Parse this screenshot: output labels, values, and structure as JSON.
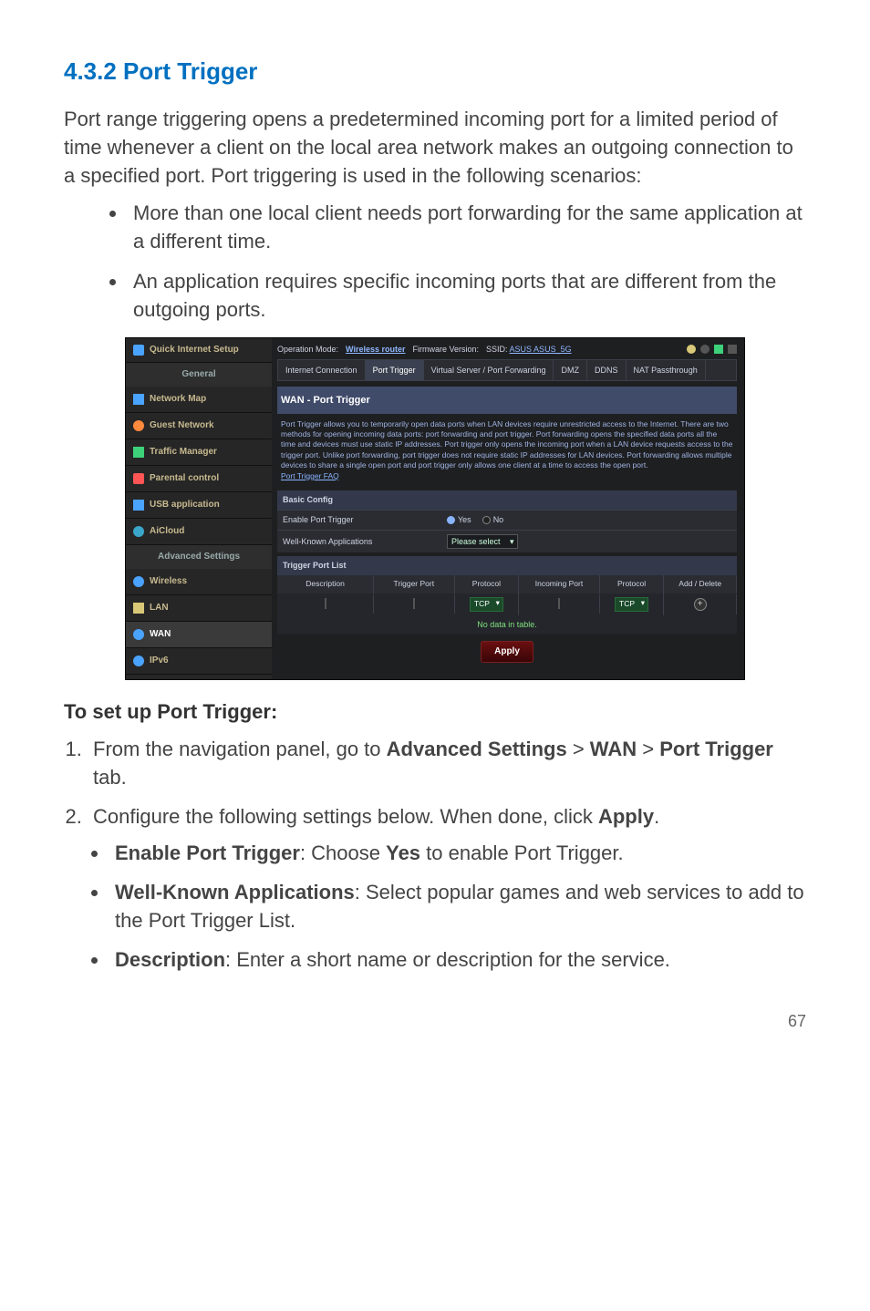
{
  "heading": "4.3.2  Port Trigger",
  "intro_para": "Port range triggering opens a predetermined incoming port for a limited period of time whenever a client on the local area network makes an outgoing connection to a specified port. Port triggering is used in the following scenarios:",
  "intro_bullets": [
    "More than one local client needs port forwarding for the same application at a different time.",
    "An application requires specific incoming ports that are different from the outgoing ports."
  ],
  "setup_heading": "To set up Port Trigger:",
  "steps": {
    "s1_pre": "From the navigation panel, go to ",
    "s1_b1": "Advanced Settings",
    "s1_gt": " > ",
    "s1_b2": "WAN",
    "s1_gt2": " > ",
    "s1_b3": "Port Trigger",
    "s1_post": " tab.",
    "s2_pre": "Configure the following settings below. When done, click ",
    "s2_b": "Apply",
    "s2_post": ".",
    "b1_b": "Enable Port Trigger",
    "b1_mid": ": Choose ",
    "b1_b2": "Yes",
    "b1_post": " to enable Port Trigger.",
    "b2_b": "Well-Known Applications",
    "b2_post": ": Select popular games and web services to add to the Port Trigger List.",
    "b3_b": "Description",
    "b3_post": ": Enter a short name or description for the service."
  },
  "page_number": "67",
  "router": {
    "sidebar": {
      "quick": "Quick Internet Setup",
      "general_label": "General",
      "general": [
        "Network Map",
        "Guest Network",
        "Traffic Manager",
        "Parental control",
        "USB application",
        "AiCloud"
      ],
      "advanced_label": "Advanced Settings",
      "advanced": [
        "Wireless",
        "LAN",
        "WAN",
        "IPv6"
      ],
      "active": "WAN",
      "icon_colors": {
        "Network Map": "#4aa3ff",
        "Guest Network": "#ff8a3d",
        "Traffic Manager": "#3dd17a",
        "Parental control": "#ff5555",
        "USB application": "#4aa3ff",
        "AiCloud": "#3aa6c9",
        "Wireless": "#4aa3ff",
        "LAN": "#d8c878",
        "WAN": "#4aa3ff",
        "IPv6": "#4aa3ff",
        "Quick": "#4aa3ff"
      }
    },
    "topline": {
      "mode_label": "Operation Mode: ",
      "mode_value": "Wireless router",
      "fw_label": "Firmware Version:",
      "ssid_label": "SSID: ",
      "ssid_values": "ASUS  ASUS_5G"
    },
    "tabs": [
      "Internet Connection",
      "Port Trigger",
      "Virtual Server / Port Forwarding",
      "DMZ",
      "DDNS",
      "NAT Passthrough"
    ],
    "tabs_active": "Port Trigger",
    "main_title": "WAN - Port Trigger",
    "desc_text": "Port Trigger allows you to temporarily open data ports when LAN devices require unrestricted access to the Internet. There are two methods for opening incoming data ports: port forwarding and port trigger. Port forwarding opens the specified data ports all the time and devices must use static IP addresses. Port trigger only opens the incoming port when a LAN device requests access to the trigger port. Unlike port forwarding, port trigger does not require static IP addresses for LAN devices. Port forwarding allows multiple devices to share a single open port and port trigger only allows one client at a time to access the open port.",
    "faq_text": "Port Trigger FAQ",
    "basic_config": "Basic Config",
    "enable_label": "Enable Port Trigger",
    "radio_yes": "Yes",
    "radio_no": "No",
    "wellknown_label": "Well-Known Applications",
    "wellknown_value": "Please select",
    "triggerlist_header": "Trigger Port List",
    "cols": [
      "Description",
      "Trigger Port",
      "Protocol",
      "Incoming Port",
      "Protocol",
      "Add / Delete"
    ],
    "proto_value": "TCP",
    "no_data": "No data in table.",
    "apply": "Apply"
  },
  "colors": {
    "heading": "#0070c0",
    "body": "#444444",
    "router_bg": "#1e1f21",
    "sidebar_bg": "#262626",
    "sidebar_text": "#c7b98f",
    "tab_active": "#3b4150",
    "main_title_bg": "#404b6a",
    "desc_color": "#9fb3e2",
    "proto_bg": "#1a4a2a",
    "apply_bg": "#6a0f10",
    "link": "#89b4ff",
    "nodata": "#7fe07f"
  }
}
